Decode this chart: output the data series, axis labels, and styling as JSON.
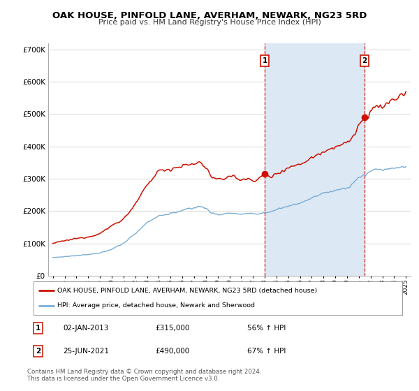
{
  "title": "OAK HOUSE, PINFOLD LANE, AVERHAM, NEWARK, NG23 5RD",
  "subtitle": "Price paid vs. HM Land Registry's House Price Index (HPI)",
  "background_color": "#ffffff",
  "plot_bg_color": "#ffffff",
  "grid_color": "#dddddd",
  "shade_color": "#dde8f5",
  "sale1_date_num": 2013.01,
  "sale1_price": 315000,
  "sale1_date_str": "02-JAN-2013",
  "sale2_date_num": 2021.49,
  "sale2_price": 490000,
  "sale2_date_str": "25-JUN-2021",
  "legend_line1": "OAK HOUSE, PINFOLD LANE, AVERHAM, NEWARK, NG23 5RD (detached house)",
  "legend_line2": "HPI: Average price, detached house, Newark and Sherwood",
  "footnote1": "Contains HM Land Registry data © Crown copyright and database right 2024.",
  "footnote2": "This data is licensed under the Open Government Licence v3.0.",
  "table_row1": [
    "1",
    "02-JAN-2013",
    "£315,000",
    "56% ↑ HPI"
  ],
  "table_row2": [
    "2",
    "25-JUN-2021",
    "£490,000",
    "67% ↑ HPI"
  ],
  "hpi_color": "#7aadd4",
  "price_color": "#cc1100",
  "vline_color": "#cc1100",
  "ylim": [
    0,
    720000
  ],
  "xlim_start": 1994.6,
  "xlim_end": 2025.4
}
